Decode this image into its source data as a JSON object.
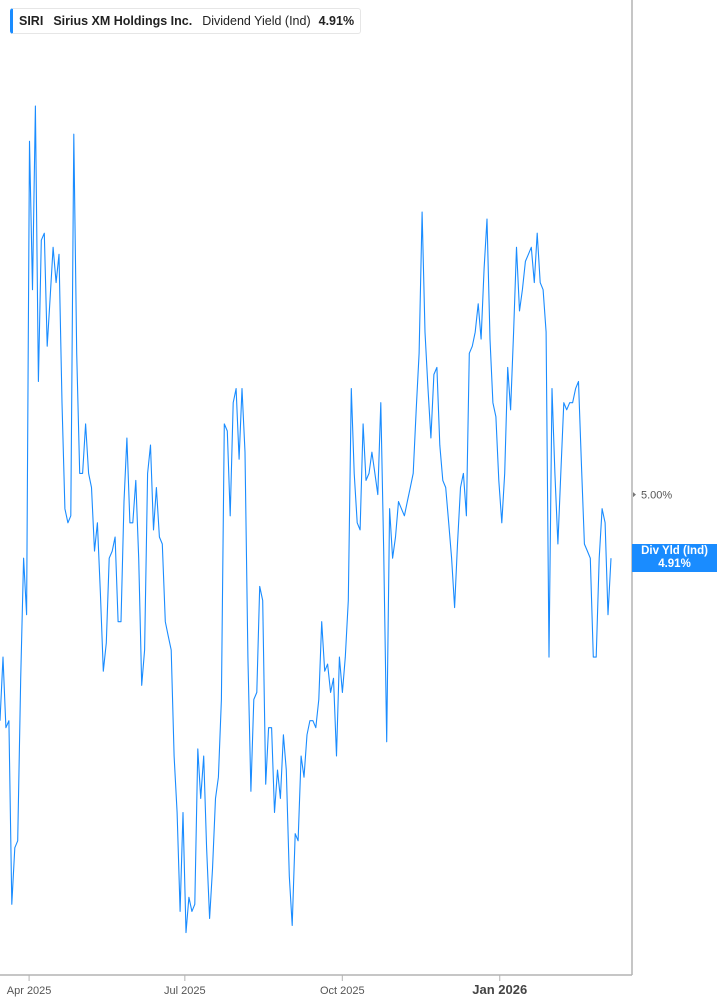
{
  "legend": {
    "ticker": "SIRI",
    "company": "Sirius XM Holdings Inc.",
    "metric": "Dividend Yield (Ind)",
    "value": "4.91%"
  },
  "last_value_label": {
    "title": "Div Yld (Ind)",
    "value": "4.91%"
  },
  "colors": {
    "line": "#1a8cff",
    "axis": "#b3b3b3",
    "label_box": "#1a8cff"
  },
  "chart_data": {
    "type": "line",
    "title": "",
    "xlabel": "",
    "ylabel": "",
    "xlim": [
      "2025-03-15",
      "2026-03-07"
    ],
    "ylim": [
      4.32,
      5.7
    ],
    "grid": false,
    "y_axis_position": "right",
    "x_ticks": [
      {
        "date": "2025-04-01",
        "label": "Apr 2025",
        "bold": false
      },
      {
        "date": "2025-07-01",
        "label": "Jul 2025",
        "bold": false
      },
      {
        "date": "2025-10-01",
        "label": "Oct 2025",
        "bold": false
      },
      {
        "date": "2026-01-01",
        "label": "Jan 2026",
        "bold": true
      }
    ],
    "y_ticks": [
      {
        "value": 5.0,
        "label": "5.00%"
      }
    ],
    "series": [
      {
        "name": "Dividend Yield (Ind)",
        "values": [
          4.68,
          4.77,
          4.67,
          4.68,
          4.42,
          4.5,
          4.51,
          4.74,
          4.91,
          4.83,
          5.5,
          5.29,
          5.55,
          5.16,
          5.36,
          5.37,
          5.21,
          5.28,
          5.35,
          5.3,
          5.34,
          5.13,
          4.98,
          4.96,
          4.97,
          5.51,
          5.2,
          5.03,
          5.03,
          5.1,
          5.03,
          5.01,
          4.92,
          4.96,
          4.86,
          4.75,
          4.79,
          4.91,
          4.92,
          4.94,
          4.82,
          4.82,
          4.99,
          5.08,
          4.96,
          4.96,
          5.02,
          4.91,
          4.73,
          4.78,
          5.03,
          5.07,
          4.95,
          5.01,
          4.94,
          4.93,
          4.82,
          4.8,
          4.78,
          4.63,
          4.55,
          4.41,
          4.55,
          4.38,
          4.43,
          4.41,
          4.42,
          4.64,
          4.57,
          4.63,
          4.5,
          4.4,
          4.47,
          4.57,
          4.6,
          4.71,
          5.1,
          5.09,
          4.97,
          5.13,
          5.15,
          5.05,
          5.15,
          5.06,
          4.77,
          4.58,
          4.71,
          4.72,
          4.87,
          4.85,
          4.59,
          4.67,
          4.67,
          4.55,
          4.61,
          4.57,
          4.66,
          4.61,
          4.46,
          4.39,
          4.52,
          4.51,
          4.63,
          4.6,
          4.66,
          4.68,
          4.68,
          4.67,
          4.71,
          4.82,
          4.75,
          4.76,
          4.72,
          4.74,
          4.63,
          4.77,
          4.72,
          4.77,
          4.85,
          5.15,
          5.03,
          4.96,
          4.95,
          5.1,
          5.02,
          5.03,
          5.06,
          5.03,
          5.0,
          5.13,
          4.92,
          4.65,
          4.98,
          4.91,
          4.94,
          4.99,
          4.98,
          4.97,
          4.99,
          5.01,
          5.03,
          5.12,
          5.2,
          5.4,
          5.23,
          5.15,
          5.08,
          5.17,
          5.18,
          5.07,
          5.02,
          5.01,
          4.96,
          4.91,
          4.84,
          4.93,
          5.01,
          5.03,
          4.97,
          5.2,
          5.21,
          5.23,
          5.27,
          5.22,
          5.32,
          5.39,
          5.22,
          5.13,
          5.11,
          5.02,
          4.96,
          5.03,
          5.18,
          5.12,
          5.23,
          5.35,
          5.26,
          5.29,
          5.33,
          5.34,
          5.35,
          5.3,
          5.37,
          5.3,
          5.29,
          5.23,
          4.77,
          5.15,
          5.03,
          4.93,
          5.03,
          5.13,
          5.12,
          5.13,
          5.13,
          5.15,
          5.16,
          5.04,
          4.93,
          4.92,
          4.91,
          4.77,
          4.77,
          4.91,
          4.98,
          4.96,
          4.83,
          4.91
        ]
      }
    ]
  }
}
